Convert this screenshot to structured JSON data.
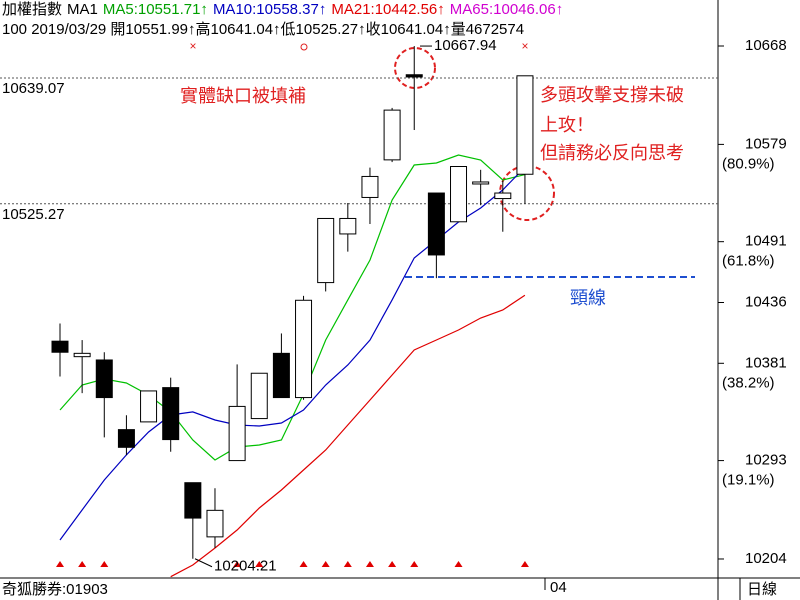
{
  "chart_data": {
    "type": "candlestick",
    "header": [
      {
        "text": "加權指數",
        "color": "#000000"
      },
      {
        "text": "MA1",
        "color": "#000000"
      },
      {
        "text": "MA5:10551.71↑",
        "color": "#00a000"
      },
      {
        "text": "MA10:10558.37↑",
        "color": "#0000c0"
      },
      {
        "text": "MA21:10442.56↑",
        "color": "#e00000"
      },
      {
        "text": "MA65:10046.06↑",
        "color": "#d000d0"
      }
    ],
    "subheader": "100 2019/03/29 開10551.99↑高10641.04↑低10525.27↑收10641.04↑量4672574",
    "ylim": [
      10186.8,
      10709.6
    ],
    "yticks": [
      10668,
      10579,
      10491,
      10436,
      10381,
      10293,
      10204
    ],
    "fib_levels": [
      {
        "value": 10579,
        "label": "(80.9%)"
      },
      {
        "value": 10491,
        "label": "(61.8%)"
      },
      {
        "value": 10381,
        "label": "(38.2%)"
      },
      {
        "value": 10293,
        "label": "(19.1%)"
      }
    ],
    "reference_lines": [
      10639.07,
      10525.27
    ],
    "neckline": {
      "value": 10459,
      "label": "頸線",
      "color": "#1f4fd0"
    },
    "candles": [
      {
        "open": 10401,
        "high": 10417,
        "low": 10369,
        "close": 10391
      },
      {
        "open": 10387,
        "high": 10402,
        "low": 10354,
        "close": 10390
      },
      {
        "open": 10384,
        "high": 10391,
        "low": 10314,
        "close": 10350
      },
      {
        "open": 10321,
        "high": 10334,
        "low": 10298,
        "close": 10305
      },
      {
        "open": 10328,
        "high": 10356,
        "low": 10328,
        "close": 10356
      },
      {
        "open": 10359,
        "high": 10368,
        "low": 10301,
        "close": 10312
      },
      {
        "open": 10273,
        "high": 10273,
        "low": 10204.21,
        "close": 10241
      },
      {
        "open": 10224,
        "high": 10268,
        "low": 10214,
        "close": 10248
      },
      {
        "open": 10293,
        "high": 10380,
        "low": 10293,
        "close": 10342
      },
      {
        "open": 10331,
        "high": 10372,
        "low": 10331,
        "close": 10372
      },
      {
        "open": 10390,
        "high": 10408,
        "low": 10350,
        "close": 10350
      },
      {
        "open": 10350,
        "high": 10442,
        "low": 10348,
        "close": 10438
      },
      {
        "open": 10454,
        "high": 10512,
        "low": 10446,
        "close": 10512
      },
      {
        "open": 10498,
        "high": 10526,
        "low": 10482,
        "close": 10512
      },
      {
        "open": 10531,
        "high": 10558,
        "low": 10507,
        "close": 10550
      },
      {
        "open": 10565,
        "high": 10612,
        "low": 10563,
        "close": 10610
      },
      {
        "open": 10642,
        "high": 10667.94,
        "low": 10592,
        "close": 10640
      },
      {
        "open": 10535,
        "high": 10535,
        "low": 10458,
        "close": 10479
      },
      {
        "open": 10509,
        "high": 10559,
        "low": 10509,
        "close": 10559
      },
      {
        "open": 10544,
        "high": 10556,
        "low": 10524,
        "close": 10545
      },
      {
        "open": 10530,
        "high": 10546,
        "low": 10500,
        "close": 10535
      },
      {
        "open": 10551.99,
        "high": 10641.04,
        "low": 10525.27,
        "close": 10641.04
      }
    ],
    "series": [
      {
        "color": "#00c000",
        "values": [
          10338.8,
          10361.4,
          10366.8,
          10363.2,
          10352.3,
          10337,
          10311.6,
          10293.5,
          10305.3,
          10307.1,
          10311.6,
          10353.2,
          10402.1,
          10438.3,
          10474.4,
          10528.7,
          10560.4,
          10562.2,
          10569.4,
          10564.9,
          10546.8,
          10551.71
        ]
      },
      {
        "color": "#0000c0",
        "values": [
          10221.2,
          10248.3,
          10275.4,
          10298.1,
          10318.9,
          10334.2,
          10337,
          10329.7,
          10325.2,
          10324.3,
          10327,
          10338.8,
          10361.4,
          10379.5,
          10402.1,
          10438.3,
          10476.2,
          10492.5,
          10508.8,
          10521.5,
          10537.8,
          10558.37
        ]
      },
      {
        "color": "#e00000",
        "values": [
          null,
          null,
          null,
          null,
          null,
          10188,
          10198.6,
          10213.9,
          10230.2,
          10250.1,
          10266.4,
          10284.5,
          10302.6,
          10325.2,
          10347.8,
          10370.4,
          10393,
          10402.1,
          10411.1,
          10422,
          10429.2,
          10442.56
        ]
      }
    ],
    "annotations": [
      "實體缺口被填補",
      "多頭攻擊支撐未破",
      "上攻！",
      "但請務必反向思考"
    ],
    "footer_left": "奇狐勝券:01903",
    "period_label": "04",
    "footer_right": "日線"
  }
}
